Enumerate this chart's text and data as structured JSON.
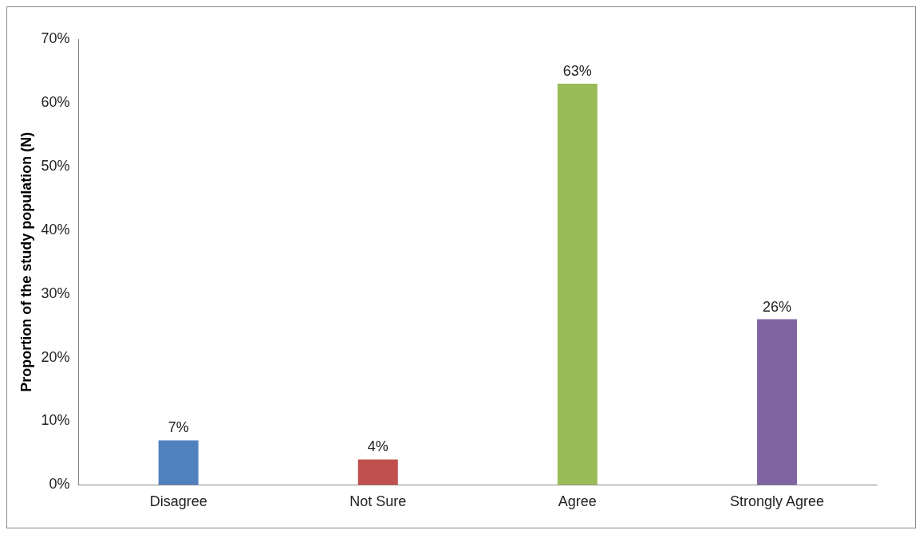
{
  "chart_data": {
    "type": "bar",
    "ylabel": "Proportion of the study population (N)",
    "categories": [
      "Disagree",
      "Not Sure",
      "Agree",
      "Strongly Agree"
    ],
    "values": [
      7,
      4,
      63,
      26
    ],
    "value_labels": [
      "7%",
      "4%",
      "63%",
      "26%"
    ],
    "colors": [
      "#4f81bd",
      "#c0504d",
      "#9bbb59",
      "#8064a2"
    ],
    "ylim": [
      0,
      70
    ],
    "yticks": [
      {
        "value": 0,
        "label": "0%"
      },
      {
        "value": 10,
        "label": "10%"
      },
      {
        "value": 20,
        "label": "20%"
      },
      {
        "value": 30,
        "label": "30%"
      },
      {
        "value": 40,
        "label": "40%"
      },
      {
        "value": 50,
        "label": "50%"
      },
      {
        "value": 60,
        "label": "60%"
      },
      {
        "value": 70,
        "label": "70%"
      }
    ],
    "grid": false,
    "legend": false
  }
}
